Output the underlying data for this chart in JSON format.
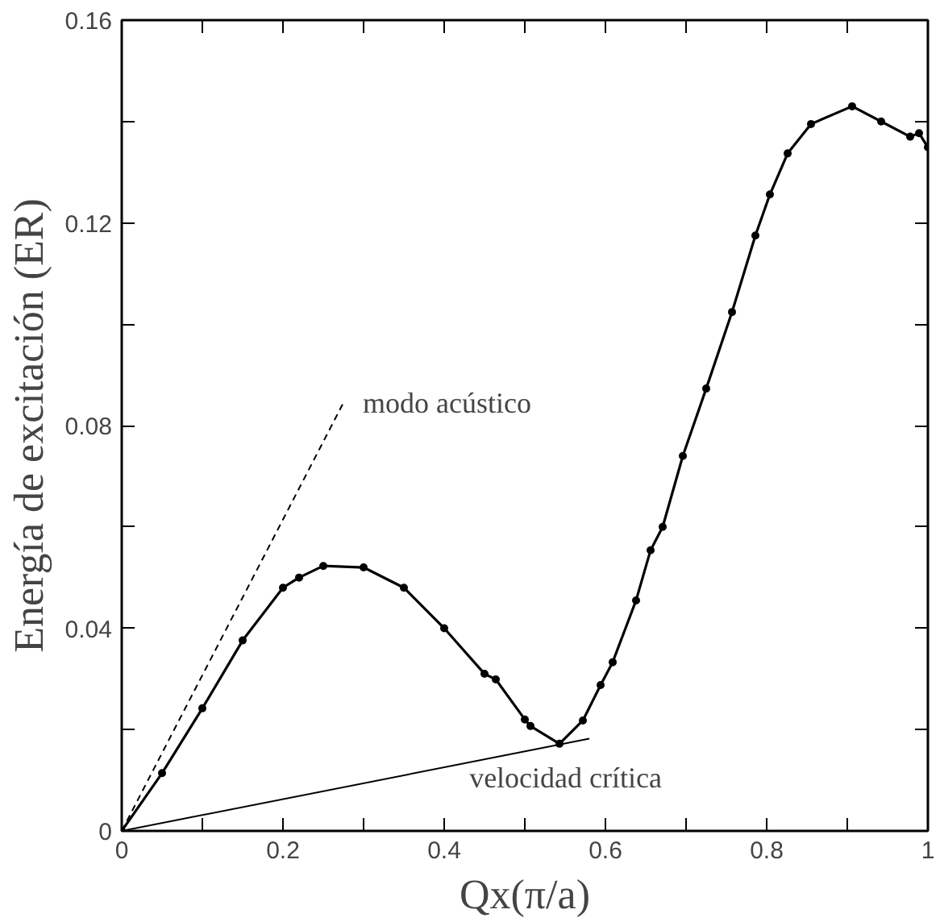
{
  "chart_data": {
    "type": "line",
    "xlabel": "Qx(π/a)",
    "ylabel": "Energía de excitación (ER)",
    "xlim": [
      0,
      1
    ],
    "ylim": [
      0,
      0.16
    ],
    "xticks": [
      0,
      {
        "value": 0.1,
        "label": null
      },
      0.2,
      {
        "value": 0.3,
        "label": null
      },
      0.4,
      {
        "value": 0.5,
        "label": null
      },
      0.6,
      {
        "value": 0.7,
        "label": null
      },
      0.8,
      {
        "value": 0.9,
        "label": null
      },
      1
    ],
    "yticks": [
      0,
      {
        "value": 0.02,
        "label": null
      },
      0.04,
      {
        "value": 0.06,
        "label": null
      },
      0.08,
      {
        "value": 0.1,
        "label": null
      },
      0.12,
      {
        "value": 0.14,
        "label": null
      },
      0.16
    ],
    "grid": false,
    "legend": false,
    "series": [
      {
        "color": "#000000",
        "marker": "circle",
        "line_style": "solid",
        "x": [
          0,
          0.05,
          0.1,
          0.15,
          0.2,
          0.22,
          0.25,
          0.3,
          0.35,
          0.4,
          0.45,
          0.464,
          0.5,
          0.507,
          0.543,
          0.572,
          0.594,
          0.609,
          0.638,
          0.656,
          0.671,
          0.696,
          0.725,
          0.757,
          0.786,
          0.804,
          0.826,
          0.855,
          0.906,
          0.942,
          0.978,
          0.989,
          1.0
        ],
        "values": [
          0,
          0.0114,
          0.0242,
          0.0376,
          0.048,
          0.05,
          0.0523,
          0.052,
          0.048,
          0.04,
          0.031,
          0.0299,
          0.022,
          0.0207,
          0.0172,
          0.0218,
          0.0288,
          0.0333,
          0.0455,
          0.0554,
          0.06,
          0.074,
          0.0873,
          0.1024,
          0.1175,
          0.1256,
          0.1337,
          0.1395,
          0.143,
          0.14,
          0.137,
          0.1377,
          0.1349
        ]
      },
      {
        "name": "modo acústico",
        "color": "#000000",
        "marker": "none",
        "line_style": "dashed",
        "x": [
          0,
          0.275
        ],
        "values": [
          0,
          0.0845
        ]
      },
      {
        "name": "velocidad crítica",
        "color": "#000000",
        "marker": "none",
        "line_style": "solid",
        "x": [
          0,
          0.58
        ],
        "values": [
          0,
          0.0182
        ]
      }
    ]
  }
}
